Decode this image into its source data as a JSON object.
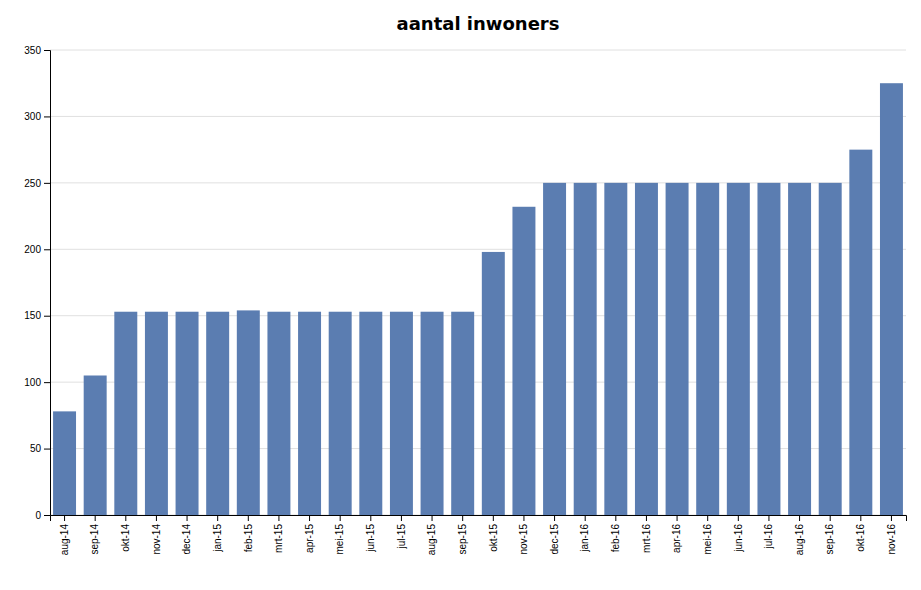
{
  "chart_data": {
    "type": "bar",
    "title": "aantal inwoners",
    "categories": [
      "aug-14",
      "sep-14",
      "okt-14",
      "nov-14",
      "dec-14",
      "jan-15",
      "feb-15",
      "mrt-15",
      "apr-15",
      "mei-15",
      "jun-15",
      "jul-15",
      "aug-15",
      "sep-15",
      "okt-15",
      "nov-15",
      "dec-15",
      "jan-16",
      "feb-16",
      "mrt-16",
      "apr-16",
      "mei-16",
      "jun-16",
      "jul-16",
      "aug-16",
      "sep-16",
      "okt-16",
      "nov-16"
    ],
    "values": [
      78,
      105,
      153,
      153,
      153,
      153,
      154,
      153,
      153,
      153,
      153,
      153,
      153,
      153,
      198,
      232,
      250,
      250,
      250,
      250,
      250,
      250,
      250,
      250,
      250,
      250,
      275,
      325
    ],
    "color": "#5B7DB1",
    "ylim": [
      0,
      350
    ],
    "yticks": [
      0,
      50,
      100,
      150,
      200,
      250,
      300,
      350
    ],
    "grid": true
  }
}
